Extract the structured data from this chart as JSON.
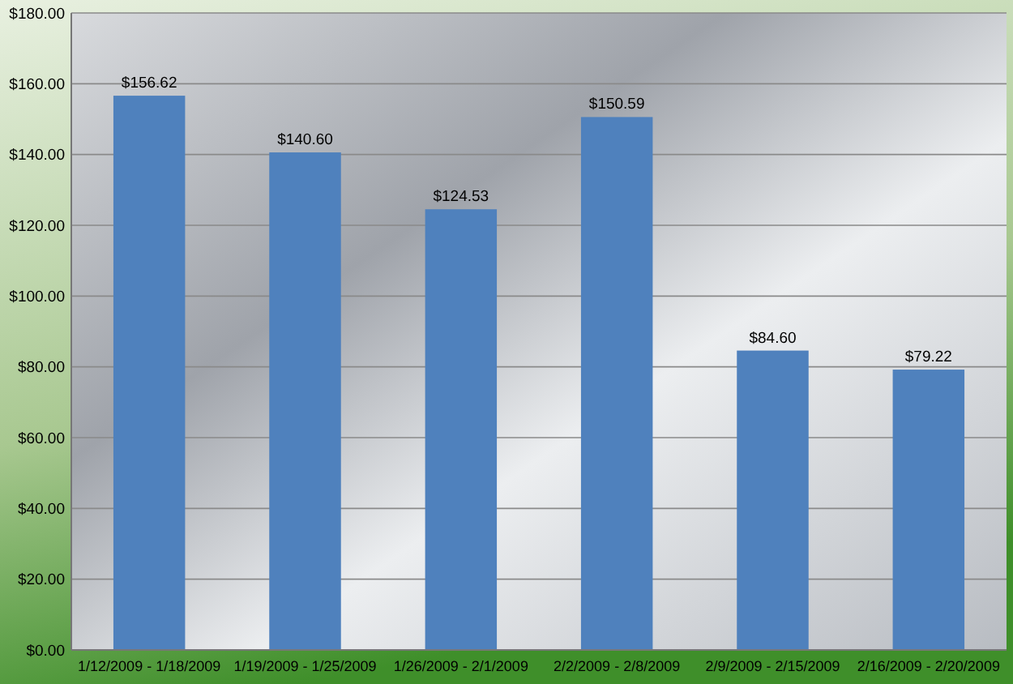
{
  "chart_data": {
    "type": "bar",
    "categories": [
      "1/12/2009 - 1/18/2009",
      "1/19/2009 - 1/25/2009",
      "1/26/2009 - 2/1/2009",
      "2/2/2009 - 2/8/2009",
      "2/9/2009 - 2/15/2009",
      "2/16/2009 - 2/20/2009"
    ],
    "values": [
      156.62,
      140.6,
      124.53,
      150.59,
      84.6,
      79.22
    ],
    "value_labels": [
      "$156.62",
      "$140.60",
      "$124.53",
      "$150.59",
      "$84.60",
      "$79.22"
    ],
    "color": "#4f81bd",
    "ylim": [
      0,
      180
    ],
    "yticks": [
      {
        "value": 0,
        "label": "$0.00"
      },
      {
        "value": 20,
        "label": "$20.00"
      },
      {
        "value": 40,
        "label": "$40.00"
      },
      {
        "value": 60,
        "label": "$60.00"
      },
      {
        "value": 80,
        "label": "$80.00"
      },
      {
        "value": 100,
        "label": "$100.00"
      },
      {
        "value": 120,
        "label": "$120.00"
      },
      {
        "value": 140,
        "label": "$140.00"
      },
      {
        "value": 160,
        "label": "$160.00"
      },
      {
        "value": 180,
        "label": "$180.00"
      }
    ],
    "grid": "y"
  }
}
